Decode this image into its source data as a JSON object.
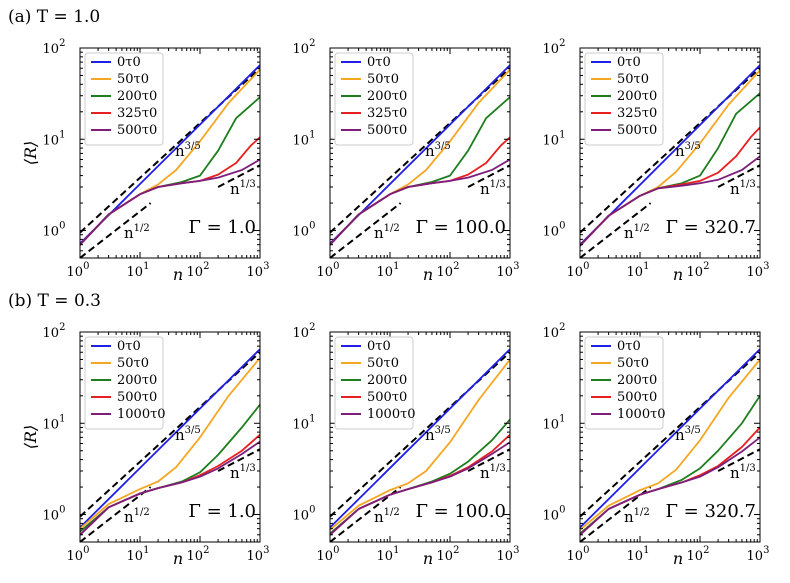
{
  "figure": {
    "row_labels": [
      "(a) T = 1.0",
      "(b) T = 0.3"
    ],
    "ylabel": "⟨R⟩",
    "xlabel": "n",
    "annotations": [
      "n^3/5",
      "n^1/2",
      "n^1/3"
    ],
    "xticks": [
      "10^0",
      "10^1",
      "10^2",
      "10^3"
    ],
    "yticks": [
      "10^0",
      "10^1",
      "10^2"
    ]
  },
  "colors": {
    "0τ0": "#1f1fe6",
    "50τ0": "#f5a623",
    "200τ0": "#1e7d1e",
    "325τ0": "#e62020",
    "500τ0": "#e62020",
    "500τ0_a": "#7d1e7d",
    "1000τ0": "#7d1e7d"
  },
  "chart_data": [
    {
      "type": "line",
      "panel": "a1",
      "row": "(a) T = 1.0",
      "gamma_label": "Γ = 1.0",
      "xscale": "log",
      "yscale": "log",
      "xlim": [
        1,
        1000
      ],
      "ylim": [
        0.5,
        100
      ],
      "legend": [
        "0τ0",
        "50τ0",
        "200τ0",
        "325τ0",
        "500τ0"
      ],
      "series": [
        {
          "name": "0τ0",
          "color": "#1f1fe6",
          "x": [
            1,
            1000
          ],
          "y": [
            0.72,
            65
          ]
        },
        {
          "name": "50τ0",
          "color": "#f5a623",
          "x": [
            1,
            3,
            10,
            20,
            40,
            100,
            300,
            1000
          ],
          "y": [
            0.7,
            1.5,
            2.5,
            3.2,
            4.6,
            9.5,
            25,
            58
          ]
        },
        {
          "name": "200τ0",
          "color": "#1e7d1e",
          "x": [
            1,
            3,
            10,
            20,
            50,
            100,
            200,
            400,
            1000
          ],
          "y": [
            0.7,
            1.5,
            2.5,
            3.0,
            3.4,
            4.0,
            7.5,
            17,
            29
          ]
        },
        {
          "name": "325τ0",
          "color": "#e62020",
          "x": [
            1,
            3,
            10,
            20,
            50,
            100,
            200,
            400,
            700,
            1000
          ],
          "y": [
            0.7,
            1.5,
            2.5,
            3.0,
            3.3,
            3.5,
            4.1,
            5.5,
            8.5,
            10.5
          ]
        },
        {
          "name": "500τ0",
          "color": "#7d1e7d",
          "x": [
            1,
            3,
            10,
            20,
            50,
            100,
            200,
            500,
            1000
          ],
          "y": [
            0.7,
            1.5,
            2.5,
            3.0,
            3.3,
            3.5,
            3.8,
            4.6,
            6.0
          ]
        }
      ],
      "guides": [
        {
          "label": "n^3/5",
          "x": [
            1,
            1000
          ],
          "y": [
            0.95,
            60
          ]
        },
        {
          "label": "n^1/2",
          "x": [
            1,
            15
          ],
          "y": [
            0.5,
            2.0
          ]
        },
        {
          "label": "n^1/3",
          "x": [
            200,
            1000
          ],
          "y": [
            3.0,
            5.2
          ]
        }
      ]
    },
    {
      "type": "line",
      "panel": "a2",
      "row": "(a) T = 1.0",
      "gamma_label": "Γ = 100.0",
      "xscale": "log",
      "yscale": "log",
      "xlim": [
        1,
        1000
      ],
      "ylim": [
        0.5,
        100
      ],
      "legend": [
        "0τ0",
        "50τ0",
        "200τ0",
        "325τ0",
        "500τ0"
      ],
      "series": [
        {
          "name": "0τ0",
          "color": "#1f1fe6",
          "x": [
            1,
            1000
          ],
          "y": [
            0.72,
            65
          ]
        },
        {
          "name": "50τ0",
          "color": "#f5a623",
          "x": [
            1,
            3,
            10,
            20,
            40,
            100,
            300,
            1000
          ],
          "y": [
            0.7,
            1.5,
            2.5,
            3.2,
            4.6,
            9.5,
            25,
            58
          ]
        },
        {
          "name": "200τ0",
          "color": "#1e7d1e",
          "x": [
            1,
            3,
            10,
            20,
            50,
            100,
            200,
            400,
            1000
          ],
          "y": [
            0.7,
            1.5,
            2.5,
            3.0,
            3.4,
            4.0,
            7.5,
            17,
            29
          ]
        },
        {
          "name": "325τ0",
          "color": "#e62020",
          "x": [
            1,
            3,
            10,
            20,
            50,
            100,
            200,
            400,
            700,
            1000
          ],
          "y": [
            0.7,
            1.5,
            2.5,
            3.0,
            3.3,
            3.5,
            4.1,
            5.5,
            8.5,
            10.5
          ]
        },
        {
          "name": "500τ0",
          "color": "#7d1e7d",
          "x": [
            1,
            3,
            10,
            20,
            50,
            100,
            200,
            500,
            1000
          ],
          "y": [
            0.7,
            1.5,
            2.5,
            3.0,
            3.3,
            3.5,
            3.8,
            4.6,
            6.0
          ]
        }
      ],
      "guides": [
        {
          "label": "n^3/5",
          "x": [
            1,
            1000
          ],
          "y": [
            0.95,
            60
          ]
        },
        {
          "label": "n^1/2",
          "x": [
            1,
            15
          ],
          "y": [
            0.5,
            2.0
          ]
        },
        {
          "label": "n^1/3",
          "x": [
            200,
            1000
          ],
          "y": [
            3.0,
            5.2
          ]
        }
      ]
    },
    {
      "type": "line",
      "panel": "a3",
      "row": "(a) T = 1.0",
      "gamma_label": "Γ = 320.7",
      "xscale": "log",
      "yscale": "log",
      "xlim": [
        1,
        1000
      ],
      "ylim": [
        0.5,
        100
      ],
      "legend": [
        "0τ0",
        "50τ0",
        "200τ0",
        "325τ0",
        "500τ0"
      ],
      "series": [
        {
          "name": "0τ0",
          "color": "#1f1fe6",
          "x": [
            1,
            1000
          ],
          "y": [
            0.7,
            65
          ]
        },
        {
          "name": "50τ0",
          "color": "#f5a623",
          "x": [
            1,
            3,
            10,
            20,
            40,
            100,
            300,
            1000
          ],
          "y": [
            0.68,
            1.45,
            2.4,
            3.0,
            4.4,
            9.0,
            24,
            57
          ]
        },
        {
          "name": "200τ0",
          "color": "#1e7d1e",
          "x": [
            1,
            3,
            10,
            20,
            50,
            100,
            200,
            400,
            1000
          ],
          "y": [
            0.68,
            1.45,
            2.4,
            2.9,
            3.3,
            4.0,
            8.0,
            19,
            32
          ]
        },
        {
          "name": "325τ0",
          "color": "#e62020",
          "x": [
            1,
            3,
            10,
            20,
            50,
            100,
            200,
            400,
            700,
            1000
          ],
          "y": [
            0.68,
            1.45,
            2.4,
            2.9,
            3.2,
            3.5,
            4.3,
            6.5,
            10.5,
            13.5
          ]
        },
        {
          "name": "500τ0",
          "color": "#7d1e7d",
          "x": [
            1,
            3,
            10,
            20,
            50,
            100,
            200,
            500,
            1000
          ],
          "y": [
            0.68,
            1.45,
            2.4,
            2.9,
            3.1,
            3.3,
            3.6,
            4.6,
            6.5
          ]
        }
      ],
      "guides": [
        {
          "label": "n^3/5",
          "x": [
            1,
            1000
          ],
          "y": [
            0.95,
            60
          ]
        },
        {
          "label": "n^1/2",
          "x": [
            1,
            15
          ],
          "y": [
            0.5,
            2.0
          ]
        },
        {
          "label": "n^1/3",
          "x": [
            200,
            1000
          ],
          "y": [
            3.0,
            5.2
          ]
        }
      ]
    },
    {
      "type": "line",
      "panel": "b1",
      "row": "(b) T = 0.3",
      "gamma_label": "Γ = 1.0",
      "xscale": "log",
      "yscale": "log",
      "xlim": [
        1,
        1000
      ],
      "ylim": [
        0.5,
        100
      ],
      "legend": [
        "0τ0",
        "50τ0",
        "200τ0",
        "500τ0",
        "1000τ0"
      ],
      "series": [
        {
          "name": "0τ0",
          "color": "#1f1fe6",
          "x": [
            1,
            1000
          ],
          "y": [
            0.72,
            65
          ]
        },
        {
          "name": "50τ0",
          "color": "#f5a623",
          "x": [
            1,
            3,
            10,
            20,
            40,
            100,
            300,
            1000
          ],
          "y": [
            0.7,
            1.3,
            1.9,
            2.3,
            3.3,
            7.0,
            20,
            52
          ]
        },
        {
          "name": "200τ0",
          "color": "#1e7d1e",
          "x": [
            1,
            3,
            10,
            20,
            50,
            100,
            200,
            500,
            1000
          ],
          "y": [
            0.65,
            1.2,
            1.7,
            1.95,
            2.3,
            2.9,
            4.5,
            9.0,
            16
          ]
        },
        {
          "name": "500τ0",
          "color": "#e62020",
          "x": [
            1,
            3,
            10,
            20,
            50,
            100,
            200,
            500,
            1000
          ],
          "y": [
            0.6,
            1.2,
            1.7,
            1.95,
            2.25,
            2.7,
            3.4,
            5.0,
            7.5
          ]
        },
        {
          "name": "1000τ0",
          "color": "#7d1e7d",
          "x": [
            1,
            3,
            10,
            20,
            50,
            100,
            200,
            500,
            1000
          ],
          "y": [
            0.6,
            1.2,
            1.7,
            1.95,
            2.25,
            2.6,
            3.2,
            4.6,
            6.3
          ]
        }
      ],
      "guides": [
        {
          "label": "n^3/5",
          "x": [
            1,
            1000
          ],
          "y": [
            0.95,
            60
          ]
        },
        {
          "label": "n^1/2",
          "x": [
            1,
            15
          ],
          "y": [
            0.5,
            2.0
          ]
        },
        {
          "label": "n^1/3",
          "x": [
            200,
            1000
          ],
          "y": [
            3.0,
            5.2
          ]
        }
      ]
    },
    {
      "type": "line",
      "panel": "b2",
      "row": "(b) T = 0.3",
      "gamma_label": "Γ = 100.0",
      "xscale": "log",
      "yscale": "log",
      "xlim": [
        1,
        1000
      ],
      "ylim": [
        0.5,
        100
      ],
      "legend": [
        "0τ0",
        "50τ0",
        "200τ0",
        "500τ0",
        "1000τ0"
      ],
      "series": [
        {
          "name": "0τ0",
          "color": "#1f1fe6",
          "x": [
            1,
            1000
          ],
          "y": [
            0.72,
            65
          ]
        },
        {
          "name": "50τ0",
          "color": "#f5a623",
          "x": [
            1,
            3,
            10,
            20,
            40,
            100,
            300,
            1000
          ],
          "y": [
            0.68,
            1.25,
            1.85,
            2.2,
            3.0,
            6.2,
            18,
            50
          ]
        },
        {
          "name": "200τ0",
          "color": "#1e7d1e",
          "x": [
            1,
            3,
            10,
            20,
            50,
            100,
            200,
            500,
            1000
          ],
          "y": [
            0.62,
            1.15,
            1.65,
            1.9,
            2.3,
            2.8,
            3.8,
            6.5,
            11
          ]
        },
        {
          "name": "500τ0",
          "color": "#e62020",
          "x": [
            1,
            3,
            10,
            20,
            50,
            100,
            200,
            500,
            1000
          ],
          "y": [
            0.6,
            1.15,
            1.65,
            1.9,
            2.25,
            2.65,
            3.3,
            4.9,
            7.5
          ]
        },
        {
          "name": "1000τ0",
          "color": "#7d1e7d",
          "x": [
            1,
            3,
            10,
            20,
            50,
            100,
            200,
            500,
            1000
          ],
          "y": [
            0.6,
            1.15,
            1.65,
            1.9,
            2.25,
            2.6,
            3.2,
            4.6,
            6.2
          ]
        }
      ],
      "guides": [
        {
          "label": "n^3/5",
          "x": [
            1,
            1000
          ],
          "y": [
            0.95,
            60
          ]
        },
        {
          "label": "n^1/2",
          "x": [
            1,
            15
          ],
          "y": [
            0.5,
            2.0
          ]
        },
        {
          "label": "n^1/3",
          "x": [
            200,
            1000
          ],
          "y": [
            3.0,
            5.2
          ]
        }
      ]
    },
    {
      "type": "line",
      "panel": "b3",
      "row": "(b) T = 0.3",
      "gamma_label": "Γ = 320.7",
      "xscale": "log",
      "yscale": "log",
      "xlim": [
        1,
        1000
      ],
      "ylim": [
        0.5,
        100
      ],
      "legend": [
        "0τ0",
        "50τ0",
        "200τ0",
        "500τ0",
        "1000τ0"
      ],
      "series": [
        {
          "name": "0τ0",
          "color": "#1f1fe6",
          "x": [
            1,
            1000
          ],
          "y": [
            0.72,
            65
          ]
        },
        {
          "name": "50τ0",
          "color": "#f5a623",
          "x": [
            1,
            3,
            10,
            20,
            40,
            100,
            300,
            1000
          ],
          "y": [
            0.68,
            1.25,
            1.85,
            2.2,
            3.1,
            6.5,
            19,
            50
          ]
        },
        {
          "name": "200τ0",
          "color": "#1e7d1e",
          "x": [
            1,
            3,
            10,
            20,
            50,
            100,
            200,
            500,
            1000
          ],
          "y": [
            0.62,
            1.15,
            1.65,
            1.9,
            2.4,
            3.2,
            5.0,
            10,
            20
          ]
        },
        {
          "name": "500τ0",
          "color": "#e62020",
          "x": [
            1,
            3,
            10,
            20,
            50,
            100,
            200,
            500,
            1000
          ],
          "y": [
            0.6,
            1.15,
            1.65,
            1.9,
            2.25,
            2.7,
            3.4,
            5.5,
            9.0
          ]
        },
        {
          "name": "1000τ0",
          "color": "#7d1e7d",
          "x": [
            1,
            3,
            10,
            20,
            50,
            100,
            200,
            500,
            1000
          ],
          "y": [
            0.6,
            1.15,
            1.65,
            1.9,
            2.25,
            2.6,
            3.3,
            4.9,
            7.0
          ]
        }
      ],
      "guides": [
        {
          "label": "n^3/5",
          "x": [
            1,
            1000
          ],
          "y": [
            0.95,
            60
          ]
        },
        {
          "label": "n^1/2",
          "x": [
            1,
            15
          ],
          "y": [
            0.5,
            2.0
          ]
        },
        {
          "label": "n^1/3",
          "x": [
            200,
            1000
          ],
          "y": [
            3.0,
            5.2
          ]
        }
      ]
    }
  ]
}
